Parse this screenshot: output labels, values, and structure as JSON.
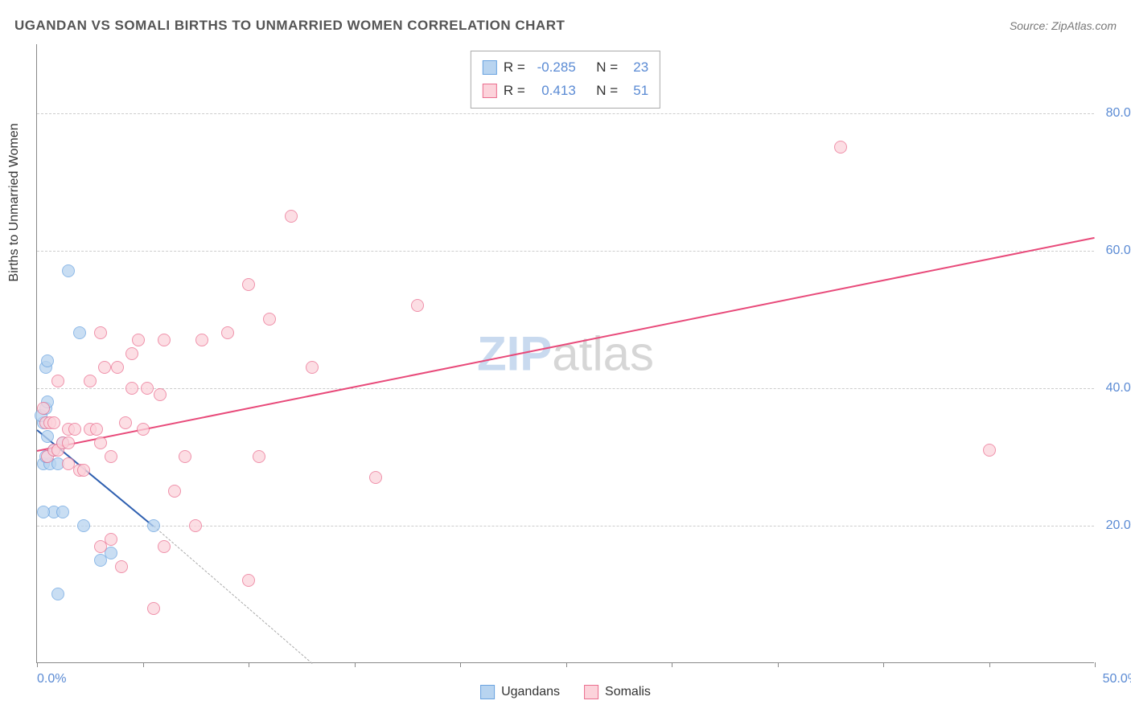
{
  "header": {
    "title": "UGANDAN VS SOMALI BIRTHS TO UNMARRIED WOMEN CORRELATION CHART",
    "source_label": "Source:",
    "source_name": "ZipAtlas.com"
  },
  "watermark": {
    "part_a": "ZIP",
    "part_b": "atlas"
  },
  "axes": {
    "y_label": "Births to Unmarried Women",
    "y_min": 0,
    "y_max": 90,
    "y_ticks": [
      20,
      40,
      60,
      80
    ],
    "y_tick_labels": [
      "20.0%",
      "40.0%",
      "60.0%",
      "80.0%"
    ],
    "x_min": 0,
    "x_max": 50,
    "x_tick_positions": [
      0,
      5,
      10,
      15,
      20,
      25,
      30,
      35,
      40,
      45,
      50
    ],
    "x_tick_labels_shown": {
      "0": "0.0%",
      "50": "50.0%"
    }
  },
  "legend": {
    "r_label": "R =",
    "n_label": "N =",
    "series": [
      {
        "name": "Ugandans",
        "r": "-0.285",
        "n": "23"
      },
      {
        "name": "Somalis",
        "r": "0.413",
        "n": "51"
      }
    ]
  },
  "series": [
    {
      "name": "Ugandans",
      "fill": "#b8d4f0",
      "stroke": "#6aa3e0",
      "line_color": "#2e5fb0",
      "marker_radius": 8,
      "trend": {
        "x1": 0,
        "y1": 34,
        "x2": 5.5,
        "y2": 20
      },
      "trend_extrapolate": {
        "x1": 5.5,
        "y1": 20,
        "x2": 13,
        "y2": 0
      },
      "points": [
        {
          "x": 0.3,
          "y": 35
        },
        {
          "x": 0.2,
          "y": 36
        },
        {
          "x": 0.4,
          "y": 37
        },
        {
          "x": 0.4,
          "y": 43
        },
        {
          "x": 0.5,
          "y": 44
        },
        {
          "x": 0.5,
          "y": 38
        },
        {
          "x": 0.3,
          "y": 29
        },
        {
          "x": 0.6,
          "y": 29
        },
        {
          "x": 1.0,
          "y": 29
        },
        {
          "x": 0.8,
          "y": 31
        },
        {
          "x": 1.2,
          "y": 32
        },
        {
          "x": 0.8,
          "y": 22
        },
        {
          "x": 1.2,
          "y": 22
        },
        {
          "x": 0.3,
          "y": 22
        },
        {
          "x": 1.5,
          "y": 57
        },
        {
          "x": 2.0,
          "y": 48
        },
        {
          "x": 2.2,
          "y": 20
        },
        {
          "x": 3.5,
          "y": 16
        },
        {
          "x": 5.5,
          "y": 20
        },
        {
          "x": 1.0,
          "y": 10
        },
        {
          "x": 3.0,
          "y": 15
        },
        {
          "x": 0.4,
          "y": 30
        },
        {
          "x": 0.5,
          "y": 33
        }
      ]
    },
    {
      "name": "Somalis",
      "fill": "#fcd3db",
      "stroke": "#ea6e8f",
      "line_color": "#e84a7a",
      "marker_radius": 8,
      "trend": {
        "x1": 0,
        "y1": 31,
        "x2": 50,
        "y2": 62
      },
      "points": [
        {
          "x": 0.3,
          "y": 37
        },
        {
          "x": 0.4,
          "y": 35
        },
        {
          "x": 0.6,
          "y": 35
        },
        {
          "x": 0.8,
          "y": 35
        },
        {
          "x": 0.5,
          "y": 30
        },
        {
          "x": 0.8,
          "y": 31
        },
        {
          "x": 1.0,
          "y": 31
        },
        {
          "x": 1.5,
          "y": 29
        },
        {
          "x": 1.2,
          "y": 32
        },
        {
          "x": 1.5,
          "y": 32
        },
        {
          "x": 2.0,
          "y": 28
        },
        {
          "x": 2.2,
          "y": 28
        },
        {
          "x": 1.5,
          "y": 34
        },
        {
          "x": 1.8,
          "y": 34
        },
        {
          "x": 2.5,
          "y": 34
        },
        {
          "x": 2.8,
          "y": 34
        },
        {
          "x": 3.0,
          "y": 32
        },
        {
          "x": 3.5,
          "y": 30
        },
        {
          "x": 4.2,
          "y": 35
        },
        {
          "x": 5.0,
          "y": 34
        },
        {
          "x": 2.5,
          "y": 41
        },
        {
          "x": 3.2,
          "y": 43
        },
        {
          "x": 3.8,
          "y": 43
        },
        {
          "x": 4.5,
          "y": 40
        },
        {
          "x": 5.2,
          "y": 40
        },
        {
          "x": 5.8,
          "y": 39
        },
        {
          "x": 3.0,
          "y": 48
        },
        {
          "x": 4.5,
          "y": 45
        },
        {
          "x": 4.8,
          "y": 47
        },
        {
          "x": 6.0,
          "y": 47
        },
        {
          "x": 7.8,
          "y": 47
        },
        {
          "x": 9.0,
          "y": 48
        },
        {
          "x": 11.0,
          "y": 50
        },
        {
          "x": 10.0,
          "y": 55
        },
        {
          "x": 12.0,
          "y": 65
        },
        {
          "x": 18.0,
          "y": 52
        },
        {
          "x": 6.5,
          "y": 25
        },
        {
          "x": 7.5,
          "y": 20
        },
        {
          "x": 7.0,
          "y": 30
        },
        {
          "x": 10.5,
          "y": 30
        },
        {
          "x": 13.0,
          "y": 43
        },
        {
          "x": 16.0,
          "y": 27
        },
        {
          "x": 5.5,
          "y": 8
        },
        {
          "x": 3.0,
          "y": 17
        },
        {
          "x": 3.5,
          "y": 18
        },
        {
          "x": 4.0,
          "y": 14
        },
        {
          "x": 6.0,
          "y": 17
        },
        {
          "x": 10.0,
          "y": 12
        },
        {
          "x": 38.0,
          "y": 75
        },
        {
          "x": 45.0,
          "y": 31
        },
        {
          "x": 1.0,
          "y": 41
        }
      ]
    }
  ],
  "style": {
    "chart_bg": "#ffffff",
    "grid_color": "#cccccc",
    "axis_color": "#888888",
    "tick_label_color": "#5b8bd4",
    "font_family": "Arial"
  }
}
